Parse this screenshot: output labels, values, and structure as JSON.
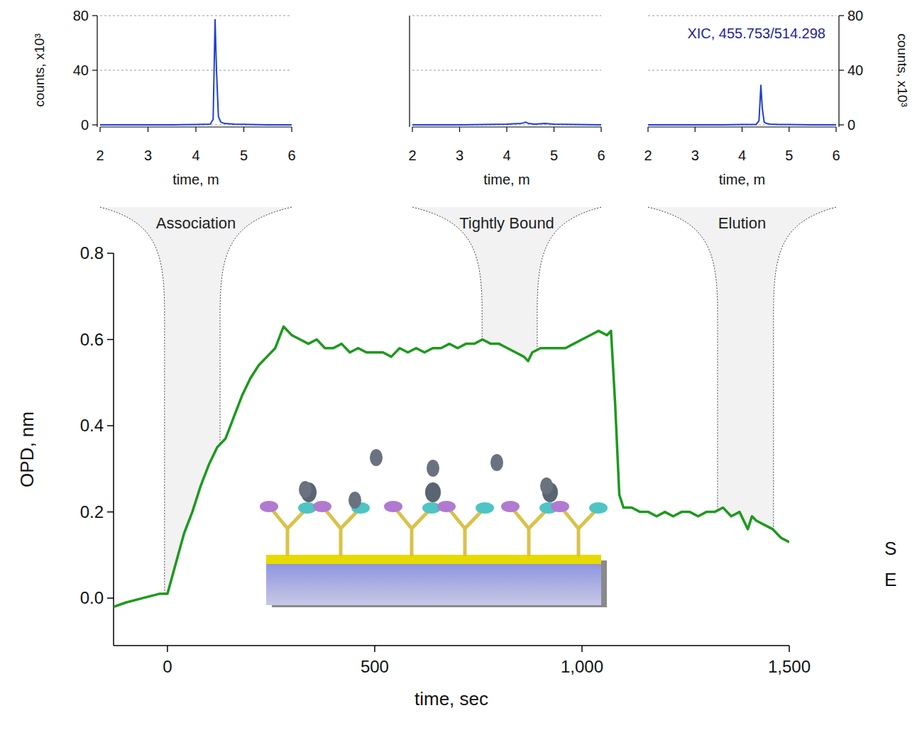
{
  "chart_data": [
    {
      "type": "line",
      "x_label": "time, m",
      "y_label": "counts, x10³",
      "x": [
        2,
        2.5,
        3,
        3.5,
        4,
        4.3,
        4.36,
        4.4,
        4.43,
        4.47,
        4.52,
        4.6,
        4.8,
        5,
        5.5,
        6
      ],
      "series": [
        {
          "color": "#1f3fd6",
          "values": [
            0,
            0,
            0,
            0,
            0.3,
            0.5,
            4,
            77,
            40,
            6,
            2,
            1,
            0.5,
            0.4,
            0,
            0
          ]
        }
      ],
      "xlim": [
        2,
        6
      ],
      "ylim": [
        0,
        80
      ],
      "xticks": [
        2,
        3,
        4,
        5,
        6
      ],
      "yticks": [
        0,
        40,
        80
      ],
      "grid": true
    },
    {
      "type": "line",
      "x_label": "time, m",
      "x": [
        2,
        2.5,
        3,
        3.5,
        4,
        4.3,
        4.36,
        4.4,
        4.43,
        4.47,
        4.52,
        4.6,
        4.8,
        5,
        5.5,
        6
      ],
      "series": [
        {
          "color": "#1f3fd6",
          "values": [
            0,
            0,
            0,
            0.2,
            0.5,
            1,
            1.5,
            2,
            1.5,
            1,
            0.8,
            0.5,
            1,
            0.5,
            0.3,
            0
          ]
        }
      ],
      "xlim": [
        2,
        6
      ],
      "ylim": [
        0,
        80
      ],
      "xticks": [
        2,
        3,
        4,
        5,
        6
      ],
      "yticks": [
        0,
        40,
        80
      ],
      "grid": true,
      "tick_labels": "x"
    },
    {
      "type": "line",
      "title": "XIC, 455.753/514.298",
      "x_label": "time, m",
      "y2_label": "counts, x10³",
      "x": [
        2,
        2.5,
        3,
        3.5,
        4,
        4.3,
        4.36,
        4.4,
        4.43,
        4.47,
        4.52,
        4.6,
        4.8,
        5,
        5.5,
        6
      ],
      "series": [
        {
          "color": "#1f3fd6",
          "axis": "y2",
          "values": [
            0,
            0,
            0,
            0,
            0.2,
            0.3,
            3,
            29,
            12,
            2,
            1,
            0.5,
            0.3,
            0.3,
            0,
            0
          ]
        }
      ],
      "xlim": [
        2,
        6
      ],
      "y2lim": [
        0,
        80
      ],
      "xticks": [
        2,
        3,
        4,
        5,
        6
      ],
      "y2ticks": [
        0,
        40,
        80
      ],
      "grid": true
    },
    {
      "type": "line",
      "x_label": "time, sec",
      "y_label": "OPD, nm",
      "x": [
        -130,
        -100,
        -60,
        -20,
        0,
        20,
        40,
        60,
        80,
        100,
        120,
        140,
        160,
        180,
        200,
        220,
        240,
        260,
        280,
        300,
        320,
        340,
        360,
        380,
        400,
        420,
        440,
        460,
        480,
        500,
        520,
        540,
        560,
        580,
        600,
        620,
        640,
        660,
        680,
        700,
        720,
        740,
        760,
        780,
        800,
        820,
        840,
        860,
        870,
        880,
        900,
        920,
        940,
        960,
        980,
        1000,
        1020,
        1040,
        1060,
        1070,
        1080,
        1090,
        1100,
        1120,
        1140,
        1160,
        1180,
        1200,
        1220,
        1240,
        1260,
        1280,
        1300,
        1320,
        1340,
        1360,
        1380,
        1400,
        1410,
        1420,
        1440,
        1460,
        1480,
        1500
      ],
      "series": [
        {
          "color": "#1c9a1c",
          "values": [
            -0.02,
            -0.01,
            0.0,
            0.01,
            0.01,
            0.08,
            0.15,
            0.2,
            0.26,
            0.31,
            0.35,
            0.37,
            0.42,
            0.47,
            0.51,
            0.54,
            0.56,
            0.58,
            0.63,
            0.61,
            0.6,
            0.59,
            0.6,
            0.58,
            0.58,
            0.59,
            0.57,
            0.58,
            0.57,
            0.57,
            0.57,
            0.56,
            0.58,
            0.57,
            0.58,
            0.57,
            0.58,
            0.58,
            0.59,
            0.58,
            0.59,
            0.59,
            0.6,
            0.59,
            0.59,
            0.58,
            0.57,
            0.56,
            0.55,
            0.57,
            0.58,
            0.58,
            0.58,
            0.58,
            0.59,
            0.6,
            0.61,
            0.62,
            0.61,
            0.62,
            0.45,
            0.24,
            0.21,
            0.21,
            0.2,
            0.2,
            0.19,
            0.2,
            0.19,
            0.2,
            0.2,
            0.19,
            0.2,
            0.2,
            0.21,
            0.19,
            0.2,
            0.16,
            0.19,
            0.18,
            0.17,
            0.16,
            0.14,
            0.13
          ]
        }
      ],
      "xlim": [
        -130,
        1500
      ],
      "ylim": [
        -0.11,
        0.8
      ],
      "xticks": [
        0,
        500,
        {
          "value": 1000,
          "label": "1,000"
        },
        {
          "value": 1500,
          "label": "1,500"
        }
      ],
      "yticks": [
        {
          "value": 0,
          "label": "0.0"
        },
        0.2,
        0.4,
        0.6,
        0.8
      ],
      "regions": [
        {
          "label": "Association",
          "start": -7,
          "end": 127
        },
        {
          "label": "Tightly Bound",
          "start": 759,
          "end": 892
        },
        {
          "label": "Elution",
          "start": 1327,
          "end": 1462
        }
      ],
      "annotations": [
        "S",
        "E"
      ]
    }
  ]
}
